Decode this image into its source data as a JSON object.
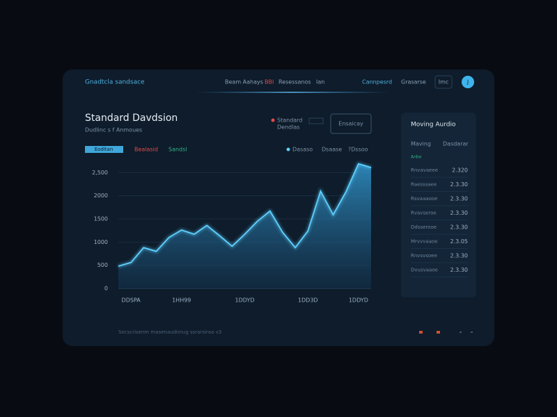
{
  "header": {
    "brand": "Gnadtcla sandsace",
    "nav": [
      "Beam Aahays",
      "BBI",
      "Resessanos",
      "Ian",
      "Cannpesrd",
      "Grasarse",
      "Imc"
    ],
    "avatar": "J"
  },
  "controls": {
    "legend_a": "Standard",
    "legend_b": "Dendlas",
    "button": "Ensaicay",
    "tabs": [
      "Eoditan",
      "Bealasid",
      "Sandsl"
    ],
    "chart_legend": [
      "Dasaso",
      "Dsaase",
      "?Dssoo"
    ]
  },
  "chart_data": {
    "type": "area",
    "title": "Standard Davdsion",
    "subtitle": "Dudlinc s f Anmoues",
    "color": "#5fd0ff",
    "categories": [
      null,
      "DDSPA",
      null,
      null,
      null,
      "1HH99",
      null,
      null,
      null,
      null,
      "1DDYD",
      null,
      null,
      null,
      null,
      "1DD3D",
      null,
      null,
      null,
      "1DDYD",
      null
    ],
    "values": [
      480,
      560,
      880,
      800,
      1100,
      1260,
      1170,
      1360,
      1140,
      910,
      1170,
      1450,
      1670,
      1210,
      880,
      1240,
      2100,
      1590,
      2080,
      2690,
      2610
    ],
    "ylim": [
      0,
      2700
    ],
    "yticks": [
      0,
      500,
      1000,
      1500,
      2000,
      {
        "value": 2500,
        "label": "2,500"
      }
    ],
    "grid": true
  },
  "panel": {
    "title": "Moving Aurdio",
    "columns": [
      "Maving",
      "Dasdarar"
    ],
    "tag": "Anbo",
    "rows": [
      [
        "Rnvavaeee",
        "2.320"
      ],
      [
        "Raesssaee",
        "2.3.30"
      ],
      [
        "Rsvaaaooe",
        "2.3.30"
      ],
      [
        "Rvavseroe",
        "2.3.30"
      ],
      [
        "Ddsserooe",
        "2.3.30"
      ],
      [
        "Mrvvvaaoe",
        "2.3.05"
      ],
      [
        "Rnvsvsoee",
        "2.3.30"
      ],
      [
        "Dvusvaaoe",
        "2.3.30"
      ]
    ]
  },
  "footer": {
    "text": "Secscrisenm masenaudnnug ssrarsiraa v3"
  }
}
